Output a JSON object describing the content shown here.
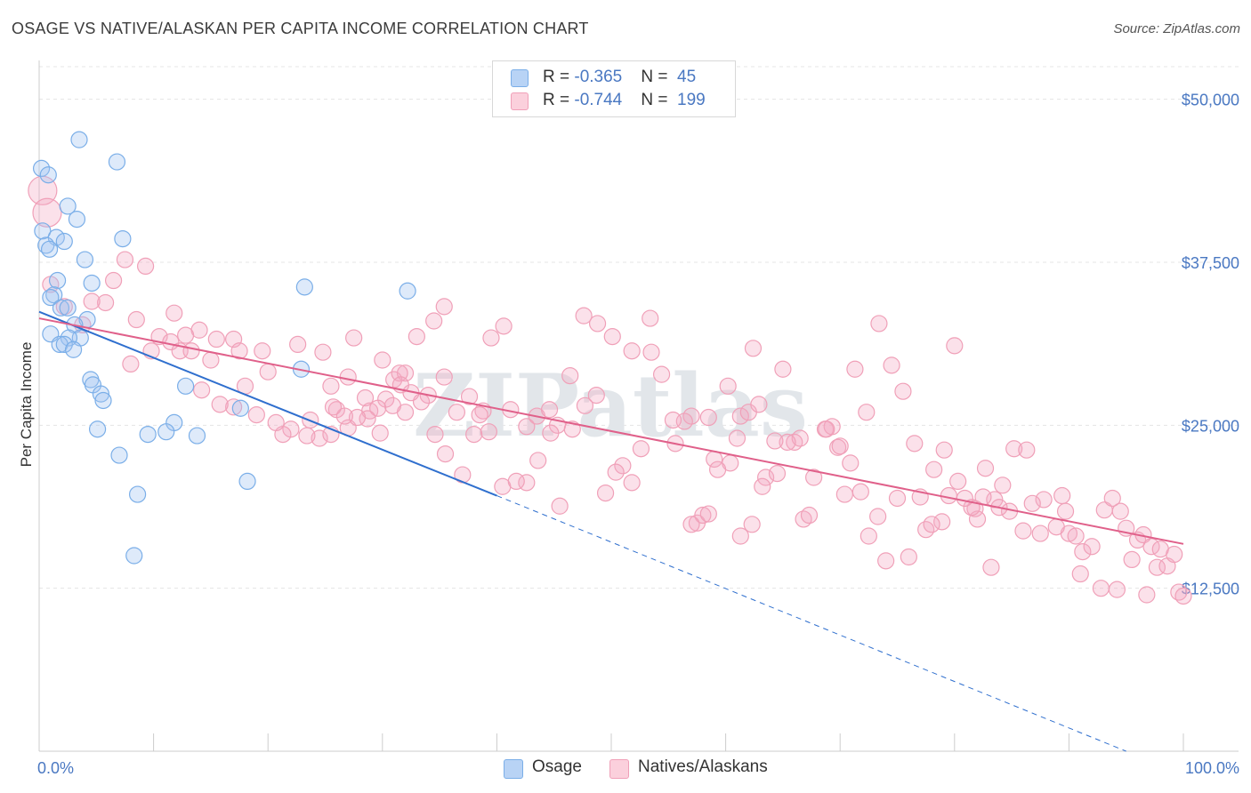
{
  "title": "OSAGE VS NATIVE/ALASKAN PER CAPITA INCOME CORRELATION CHART",
  "source": "Source: ZipAtlas.com",
  "watermark": "ZIPatlas",
  "legend": {
    "rows": [
      {
        "r_label": "R = ",
        "r_value": "-0.365",
        "n_label": "N = ",
        "n_value": "45"
      },
      {
        "r_label": "R = ",
        "r_value": "-0.744",
        "n_label": "N = ",
        "n_value": "199"
      }
    ]
  },
  "bottom_legend": [
    "Osage",
    "Natives/Alaskans"
  ],
  "colors": {
    "osage": "#7aaee8",
    "osage_line": "#2f6fce",
    "natives": "#f0a0b8",
    "natives_line": "#e0608a",
    "tick_text": "#4a78c2"
  },
  "chart_data": {
    "type": "scatter",
    "title": "OSAGE VS NATIVE/ALASKAN PER CAPITA INCOME CORRELATION CHART",
    "xlabel": "",
    "ylabel": "Per Capita Income",
    "xlim": [
      0,
      100
    ],
    "ylim": [
      0,
      52500
    ],
    "x_tick_labels": [
      "0.0%",
      "100.0%"
    ],
    "y_ticks": [
      12500,
      25000,
      37500,
      50000
    ],
    "y_tick_labels": [
      "$12,500",
      "$25,000",
      "$37,500",
      "$50,000"
    ],
    "grid": true,
    "legend_position": "top-center",
    "series": [
      {
        "name": "Osage",
        "trend": {
          "x": [
            0,
            40
          ],
          "y": [
            33700,
            19600
          ],
          "dashed_to": [
            95,
            0
          ]
        },
        "points": [
          [
            0.2,
            44700
          ],
          [
            0.8,
            44200
          ],
          [
            3.5,
            46900
          ],
          [
            6.8,
            45200
          ],
          [
            2.5,
            41800
          ],
          [
            3.3,
            40800
          ],
          [
            0.3,
            39900
          ],
          [
            1.5,
            39400
          ],
          [
            2.2,
            39100
          ],
          [
            0.6,
            38800
          ],
          [
            0.9,
            38500
          ],
          [
            7.3,
            39300
          ],
          [
            4.0,
            37700
          ],
          [
            1.6,
            36100
          ],
          [
            4.6,
            35900
          ],
          [
            23.2,
            35600
          ],
          [
            32.2,
            35300
          ],
          [
            1.3,
            35000
          ],
          [
            1.0,
            34800
          ],
          [
            1.9,
            34000
          ],
          [
            2.5,
            34000
          ],
          [
            4.2,
            33100
          ],
          [
            3.1,
            32700
          ],
          [
            1.0,
            32000
          ],
          [
            3.6,
            31700
          ],
          [
            2.6,
            31700
          ],
          [
            1.8,
            31200
          ],
          [
            2.2,
            31200
          ],
          [
            3.0,
            30800
          ],
          [
            22.9,
            29300
          ],
          [
            4.5,
            28500
          ],
          [
            12.8,
            28000
          ],
          [
            4.7,
            28100
          ],
          [
            5.4,
            27400
          ],
          [
            5.6,
            26900
          ],
          [
            17.6,
            26300
          ],
          [
            11.8,
            25200
          ],
          [
            5.1,
            24700
          ],
          [
            11.1,
            24500
          ],
          [
            9.5,
            24300
          ],
          [
            13.8,
            24200
          ],
          [
            7.0,
            22700
          ],
          [
            18.2,
            20700
          ],
          [
            8.6,
            19700
          ],
          [
            8.3,
            15000
          ]
        ]
      },
      {
        "name": "Natives/Alaskans",
        "trend": {
          "x": [
            0,
            100
          ],
          "y": [
            33200,
            15900
          ]
        },
        "points": [
          [
            0.3,
            43000
          ],
          [
            0.7,
            41300
          ],
          [
            1.0,
            35800
          ],
          [
            7.5,
            37700
          ],
          [
            9.3,
            37200
          ],
          [
            6.5,
            36100
          ],
          [
            5.8,
            34400
          ],
          [
            4.6,
            34500
          ],
          [
            2.2,
            34100
          ],
          [
            3.8,
            32700
          ],
          [
            8.5,
            33100
          ],
          [
            11.8,
            33600
          ],
          [
            14.0,
            32300
          ],
          [
            9.8,
            30700
          ],
          [
            8.0,
            29700
          ],
          [
            10.5,
            31800
          ],
          [
            11.5,
            31400
          ],
          [
            12.3,
            30700
          ],
          [
            12.8,
            31900
          ],
          [
            15.0,
            30000
          ],
          [
            15.5,
            31600
          ],
          [
            17.0,
            31600
          ],
          [
            17.5,
            30700
          ],
          [
            19.5,
            30700
          ],
          [
            20.0,
            29100
          ],
          [
            22.6,
            31200
          ],
          [
            24.8,
            30600
          ],
          [
            27.5,
            31700
          ],
          [
            25.5,
            28000
          ],
          [
            27.0,
            28700
          ],
          [
            28.5,
            27100
          ],
          [
            26.0,
            26200
          ],
          [
            23.7,
            25400
          ],
          [
            24.5,
            24000
          ],
          [
            22.0,
            24700
          ],
          [
            21.3,
            24300
          ],
          [
            20.7,
            25200
          ],
          [
            19.0,
            25800
          ],
          [
            18.0,
            28000
          ],
          [
            17.0,
            26400
          ],
          [
            15.8,
            26600
          ],
          [
            14.2,
            27700
          ],
          [
            13.3,
            30700
          ],
          [
            30.0,
            30000
          ],
          [
            31.0,
            28500
          ],
          [
            32.0,
            29000
          ],
          [
            33.0,
            31800
          ],
          [
            35.4,
            34100
          ],
          [
            34.0,
            27300
          ],
          [
            31.5,
            29000
          ],
          [
            30.3,
            27000
          ],
          [
            28.9,
            26100
          ],
          [
            27.0,
            24800
          ],
          [
            25.5,
            24300
          ],
          [
            23.4,
            24200
          ],
          [
            29.8,
            24400
          ],
          [
            32.0,
            26000
          ],
          [
            34.6,
            24300
          ],
          [
            35.5,
            22800
          ],
          [
            37.0,
            21200
          ],
          [
            38.0,
            24300
          ],
          [
            38.8,
            26100
          ],
          [
            39.3,
            24500
          ],
          [
            40.5,
            20300
          ],
          [
            41.2,
            26200
          ],
          [
            42.6,
            24900
          ],
          [
            43.5,
            25700
          ],
          [
            44.6,
            26200
          ],
          [
            45.3,
            25000
          ],
          [
            46.4,
            28800
          ],
          [
            47.6,
            33400
          ],
          [
            48.8,
            32800
          ],
          [
            50.1,
            31800
          ],
          [
            51.8,
            30700
          ],
          [
            53.4,
            33200
          ],
          [
            55.6,
            23600
          ],
          [
            57.5,
            17500
          ],
          [
            57.0,
            25700
          ],
          [
            58.0,
            18100
          ],
          [
            58.5,
            18200
          ],
          [
            59.0,
            22400
          ],
          [
            60.2,
            28000
          ],
          [
            61.0,
            24000
          ],
          [
            61.3,
            25700
          ],
          [
            62.0,
            26000
          ],
          [
            62.4,
            30900
          ],
          [
            62.9,
            26600
          ],
          [
            63.5,
            21000
          ],
          [
            64.5,
            21300
          ],
          [
            65.0,
            29300
          ],
          [
            66.0,
            23700
          ],
          [
            66.8,
            17800
          ],
          [
            67.3,
            18100
          ],
          [
            68.7,
            24700
          ],
          [
            69.3,
            24900
          ],
          [
            69.8,
            23300
          ],
          [
            70.4,
            19700
          ],
          [
            71.3,
            29300
          ],
          [
            72.3,
            26000
          ],
          [
            73.4,
            32800
          ],
          [
            74.5,
            29600
          ],
          [
            75.5,
            27600
          ],
          [
            76.5,
            23600
          ],
          [
            77.5,
            17000
          ],
          [
            78.2,
            21600
          ],
          [
            79.1,
            23100
          ],
          [
            80.0,
            31100
          ],
          [
            80.3,
            20700
          ],
          [
            81.8,
            18600
          ],
          [
            82.0,
            17800
          ],
          [
            82.7,
            21700
          ],
          [
            83.2,
            14100
          ],
          [
            83.5,
            19300
          ],
          [
            84.2,
            20400
          ],
          [
            85.2,
            23200
          ],
          [
            86.3,
            23100
          ],
          [
            87.8,
            19300
          ],
          [
            89.4,
            19600
          ],
          [
            90.0,
            16700
          ],
          [
            90.6,
            16500
          ],
          [
            91.2,
            15300
          ],
          [
            92.0,
            15700
          ],
          [
            93.1,
            18500
          ],
          [
            93.8,
            19400
          ],
          [
            94.5,
            18400
          ],
          [
            95.0,
            17100
          ],
          [
            96.0,
            16200
          ],
          [
            96.5,
            16600
          ],
          [
            97.2,
            15700
          ],
          [
            97.7,
            14100
          ],
          [
            98.0,
            15500
          ],
          [
            98.6,
            14200
          ],
          [
            99.2,
            15100
          ],
          [
            99.6,
            12200
          ],
          [
            100.0,
            11900
          ],
          [
            95.5,
            14700
          ],
          [
            94.2,
            12400
          ],
          [
            96.8,
            12000
          ],
          [
            92.8,
            12500
          ],
          [
            91.0,
            13600
          ],
          [
            89.7,
            18400
          ],
          [
            88.9,
            17200
          ],
          [
            87.5,
            16700
          ],
          [
            86.8,
            19000
          ],
          [
            86.0,
            16900
          ],
          [
            84.8,
            18400
          ],
          [
            83.9,
            18700
          ],
          [
            82.5,
            19500
          ],
          [
            81.5,
            18700
          ],
          [
            80.9,
            19400
          ],
          [
            79.5,
            19600
          ],
          [
            78.9,
            17600
          ],
          [
            78.0,
            17400
          ],
          [
            77.0,
            19500
          ],
          [
            76.0,
            14900
          ],
          [
            75.0,
            19400
          ],
          [
            74.0,
            14600
          ],
          [
            73.3,
            18000
          ],
          [
            72.5,
            16500
          ],
          [
            71.8,
            19900
          ],
          [
            70.9,
            22100
          ],
          [
            70.0,
            23400
          ],
          [
            68.8,
            24700
          ],
          [
            67.7,
            21000
          ],
          [
            66.5,
            24000
          ],
          [
            65.4,
            23700
          ],
          [
            64.3,
            23800
          ],
          [
            63.2,
            20300
          ],
          [
            62.3,
            17400
          ],
          [
            61.3,
            16500
          ],
          [
            60.4,
            22100
          ],
          [
            59.3,
            21600
          ],
          [
            58.5,
            25600
          ],
          [
            57.0,
            17400
          ],
          [
            56.4,
            25300
          ],
          [
            55.4,
            25400
          ],
          [
            54.4,
            28900
          ],
          [
            53.5,
            30600
          ],
          [
            52.6,
            23200
          ],
          [
            51.8,
            20600
          ],
          [
            51.0,
            21900
          ],
          [
            50.4,
            21400
          ],
          [
            49.5,
            19800
          ],
          [
            48.7,
            27300
          ],
          [
            47.7,
            26500
          ],
          [
            46.6,
            24700
          ],
          [
            45.5,
            18800
          ],
          [
            44.7,
            24400
          ],
          [
            43.6,
            22300
          ],
          [
            42.6,
            20600
          ],
          [
            41.7,
            20700
          ],
          [
            40.6,
            32600
          ],
          [
            39.5,
            31700
          ],
          [
            38.5,
            25800
          ],
          [
            37.6,
            27200
          ],
          [
            36.5,
            26000
          ],
          [
            35.4,
            28700
          ],
          [
            34.5,
            33000
          ],
          [
            33.4,
            26800
          ],
          [
            32.5,
            27500
          ],
          [
            31.6,
            28100
          ],
          [
            30.9,
            26500
          ],
          [
            29.6,
            26300
          ],
          [
            28.7,
            25500
          ],
          [
            27.8,
            25600
          ],
          [
            26.7,
            25700
          ],
          [
            25.7,
            26400
          ]
        ]
      }
    ]
  }
}
